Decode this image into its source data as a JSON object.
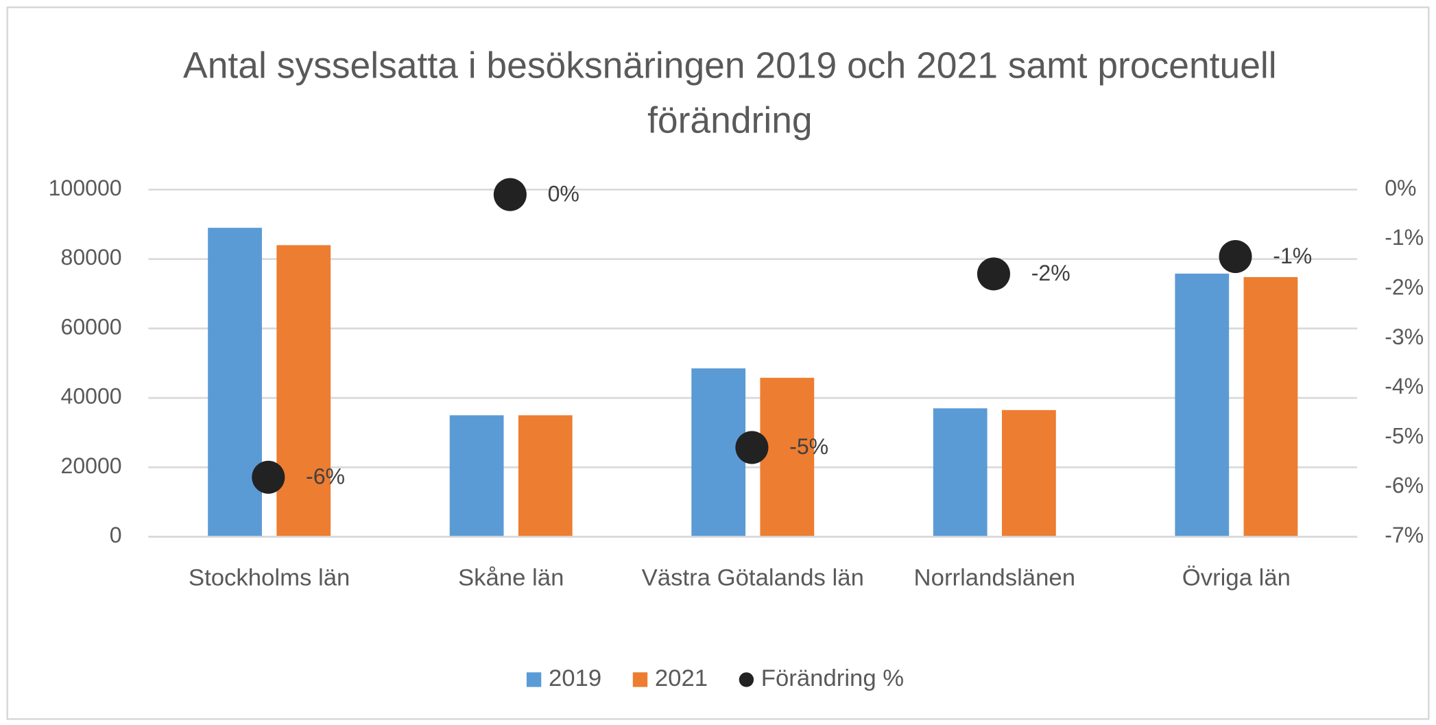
{
  "chart_data": {
    "type": "bar",
    "title": "Antal sysselsatta i besöksnäringen 2019 och 2021 samt procentuell förändring",
    "categories": [
      "Stockholms län",
      "Skåne län",
      "Västra Götalands län",
      "Norrlandslänen",
      "Övriga län"
    ],
    "series": [
      {
        "name": "2019",
        "color": "#5b9bd5",
        "values": [
          89000,
          35000,
          48500,
          37000,
          75800
        ]
      },
      {
        "name": "2021",
        "color": "#ed7d31",
        "values": [
          84000,
          35000,
          45800,
          36500,
          74800
        ]
      },
      {
        "name": "Förändring %",
        "type": "scatter",
        "axis": "y2",
        "color": "#222222",
        "values": [
          -5.8,
          -0.1,
          -5.2,
          -1.7,
          -1.35
        ],
        "value_labels": [
          "-6%",
          "0%",
          "-5%",
          "-2%",
          "-1%"
        ]
      }
    ],
    "ylim": [
      0,
      100000
    ],
    "yticks": [
      0,
      20000,
      40000,
      60000,
      80000,
      100000
    ],
    "y2lim": [
      -7,
      0
    ],
    "y2ticks": [
      {
        "value": 0,
        "label": "0%"
      },
      {
        "value": -1,
        "label": "-1%"
      },
      {
        "value": -2,
        "label": "-2%"
      },
      {
        "value": -3,
        "label": "-3%"
      },
      {
        "value": -4,
        "label": "-4%"
      },
      {
        "value": -5,
        "label": "-5%"
      },
      {
        "value": -6,
        "label": "-6%"
      },
      {
        "value": -7,
        "label": "-7%"
      }
    ],
    "grid": true,
    "legend": "bottom"
  }
}
